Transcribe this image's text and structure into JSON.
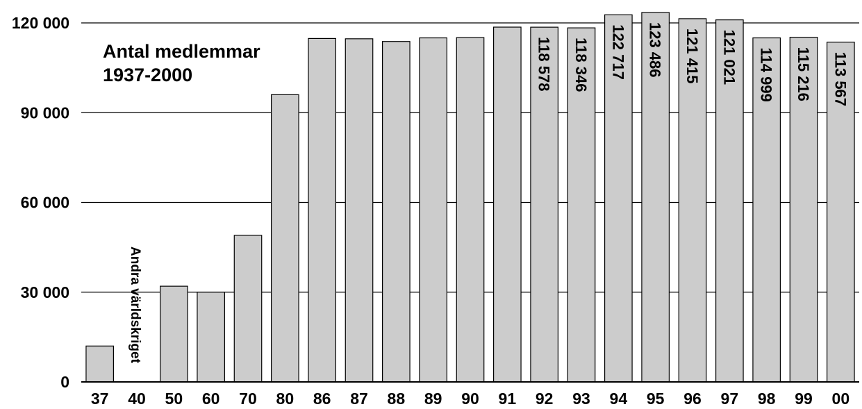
{
  "chart_data": {
    "type": "bar",
    "title_lines": [
      "Antal medlemmar",
      "1937-2000"
    ],
    "xlabel": "",
    "ylabel": "",
    "categories": [
      "37",
      "40",
      "50",
      "60",
      "70",
      "80",
      "86",
      "87",
      "88",
      "89",
      "90",
      "91",
      "92",
      "93",
      "94",
      "95",
      "96",
      "97",
      "98",
      "99",
      "00"
    ],
    "values": [
      12000,
      0,
      32000,
      30000,
      49000,
      96000,
      114800,
      114700,
      113800,
      115000,
      115100,
      118600,
      118578,
      118346,
      122717,
      123486,
      121415,
      121021,
      114999,
      115216,
      113567
    ],
    "data_labels": [
      "",
      "",
      "",
      "",
      "",
      "",
      "",
      "",
      "",
      "",
      "",
      "",
      "118 578",
      "118 346",
      "122 717",
      "123 486",
      "121 415",
      "121 021",
      "114 999",
      "115 216",
      "113 567"
    ],
    "ylim": [
      0,
      120000
    ],
    "yticks": [
      0,
      30000,
      60000,
      90000,
      120000
    ],
    "ytick_labels": [
      "0",
      "30 000",
      "60 000",
      "90 000",
      "120 000"
    ],
    "grid": true,
    "annotation": {
      "text": "Andra världskriget",
      "category": "40"
    },
    "colors": {
      "bar": "#cccccc",
      "outline": "#000000"
    }
  }
}
